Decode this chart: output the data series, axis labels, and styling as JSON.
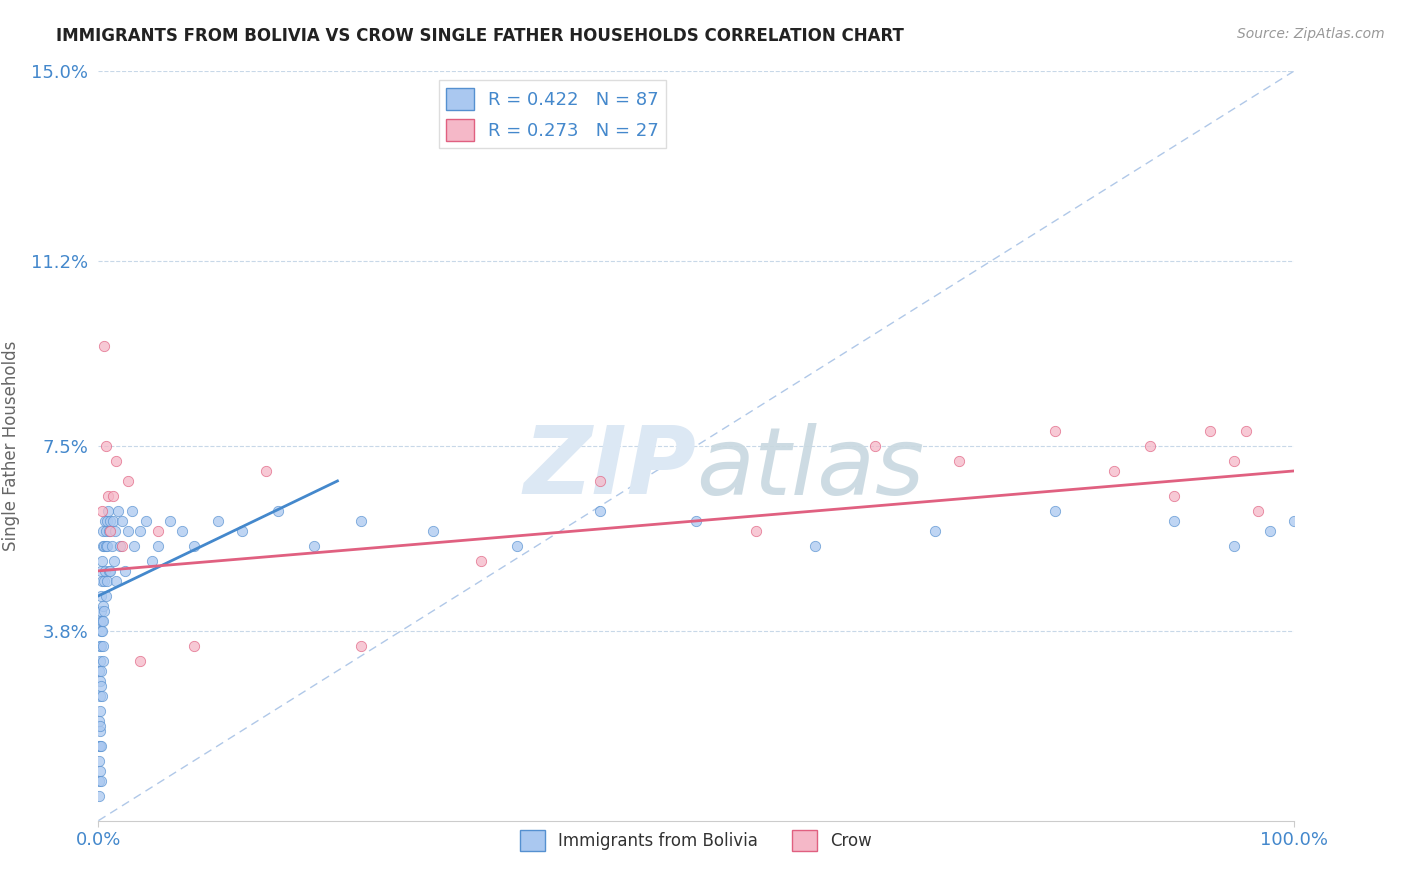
{
  "title": "IMMIGRANTS FROM BOLIVIA VS CROW SINGLE FATHER HOUSEHOLDS CORRELATION CHART",
  "source": "Source: ZipAtlas.com",
  "ylabel": "Single Father Households",
  "xlim": [
    0.0,
    100.0
  ],
  "ylim": [
    0.0,
    15.0
  ],
  "yticks": [
    0.0,
    3.8,
    7.5,
    11.2,
    15.0
  ],
  "yticklabels": [
    "",
    "3.8%",
    "7.5%",
    "11.2%",
    "15.0%"
  ],
  "xticklabels": [
    "0.0%",
    "100.0%"
  ],
  "legend_label1": "Immigrants from Bolivia",
  "legend_label2": "Crow",
  "color_blue_fill": "#aac8f0",
  "color_blue_edge": "#5590d0",
  "color_pink_fill": "#f5b8c8",
  "color_pink_edge": "#e06080",
  "color_blue_line": "#4488cc",
  "color_pink_line": "#e06080",
  "color_diag": "#b0c8e8",
  "color_grid": "#c8d8e8",
  "color_title": "#222222",
  "color_tick_label": "#4488cc",
  "background": "#ffffff",
  "watermark_color": "#dce8f4",
  "blue_x": [
    0.05,
    0.06,
    0.07,
    0.08,
    0.09,
    0.1,
    0.1,
    0.12,
    0.13,
    0.14,
    0.15,
    0.15,
    0.16,
    0.17,
    0.18,
    0.2,
    0.2,
    0.21,
    0.22,
    0.25,
    0.25,
    0.27,
    0.28,
    0.3,
    0.3,
    0.32,
    0.35,
    0.35,
    0.38,
    0.4,
    0.4,
    0.42,
    0.45,
    0.5,
    0.5,
    0.52,
    0.55,
    0.6,
    0.6,
    0.65,
    0.7,
    0.7,
    0.75,
    0.8,
    0.85,
    0.9,
    1.0,
    1.0,
    1.1,
    1.2,
    1.3,
    1.4,
    1.5,
    1.6,
    1.8,
    2.0,
    2.2,
    2.5,
    2.8,
    3.0,
    3.5,
    4.0,
    4.5,
    5.0,
    6.0,
    7.0,
    8.0,
    10.0,
    12.0,
    15.0,
    18.0,
    22.0,
    28.0,
    35.0,
    42.0,
    50.0,
    60.0,
    70.0,
    80.0,
    90.0,
    95.0,
    98.0,
    100.0,
    0.08,
    0.11,
    0.19,
    0.23
  ],
  "blue_y": [
    1.5,
    2.0,
    1.2,
    3.0,
    0.8,
    2.5,
    1.8,
    3.2,
    2.8,
    1.5,
    4.0,
    2.2,
    3.5,
    1.9,
    2.7,
    3.8,
    4.5,
    3.0,
    4.2,
    5.0,
    3.5,
    4.8,
    2.5,
    5.2,
    3.8,
    4.0,
    5.5,
    3.2,
    4.3,
    5.8,
    4.0,
    3.5,
    4.8,
    5.5,
    4.2,
    6.0,
    5.0,
    5.5,
    4.5,
    5.8,
    6.0,
    4.8,
    5.5,
    6.2,
    5.0,
    5.8,
    6.0,
    5.0,
    5.5,
    6.0,
    5.2,
    5.8,
    4.8,
    6.2,
    5.5,
    6.0,
    5.0,
    5.8,
    6.2,
    5.5,
    5.8,
    6.0,
    5.2,
    5.5,
    6.0,
    5.8,
    5.5,
    6.0,
    5.8,
    6.2,
    5.5,
    6.0,
    5.8,
    5.5,
    6.2,
    6.0,
    5.5,
    5.8,
    6.2,
    6.0,
    5.5,
    5.8,
    6.0,
    0.5,
    1.0,
    1.5,
    0.8
  ],
  "blue_line_x": [
    0.0,
    20.0
  ],
  "blue_line_y": [
    4.5,
    6.8
  ],
  "pink_x": [
    0.3,
    0.5,
    0.6,
    0.8,
    1.0,
    1.2,
    1.5,
    2.0,
    2.5,
    3.5,
    5.0,
    8.0,
    14.0,
    22.0,
    32.0,
    42.0,
    55.0,
    65.0,
    72.0,
    80.0,
    85.0,
    88.0,
    90.0,
    93.0,
    95.0,
    96.0,
    97.0
  ],
  "pink_y": [
    6.2,
    9.5,
    7.5,
    6.5,
    5.8,
    6.5,
    7.2,
    5.5,
    6.8,
    3.2,
    5.8,
    3.5,
    7.0,
    3.5,
    5.2,
    6.8,
    5.8,
    7.5,
    7.2,
    7.8,
    7.0,
    7.5,
    6.5,
    7.8,
    7.2,
    7.8,
    6.2
  ],
  "pink_line_x": [
    0.0,
    100.0
  ],
  "pink_line_y": [
    5.0,
    7.0
  ]
}
